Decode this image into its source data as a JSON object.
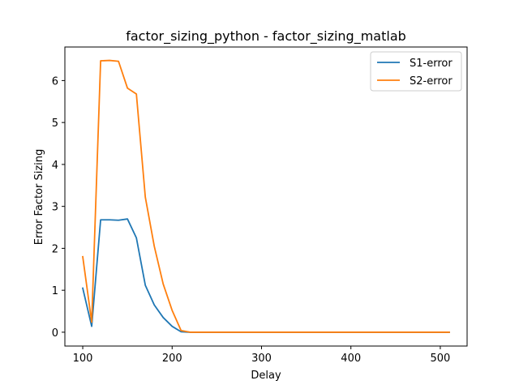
{
  "chart_data": {
    "type": "line",
    "title": "factor_sizing_python - factor_sizing_matlab",
    "xlabel": "Delay",
    "ylabel": "Error Factor Sizing",
    "xlim": [
      80,
      530
    ],
    "ylim": [
      -0.33,
      6.8
    ],
    "xticks": [
      100,
      200,
      300,
      400,
      500
    ],
    "yticks": [
      0,
      1,
      2,
      3,
      4,
      5,
      6
    ],
    "grid": false,
    "legend_position": "top-right",
    "x": [
      100,
      110,
      120,
      130,
      140,
      150,
      160,
      170,
      180,
      190,
      200,
      210,
      220,
      230,
      240,
      250,
      260,
      270,
      280,
      290,
      300,
      310,
      320,
      330,
      340,
      350,
      360,
      370,
      380,
      390,
      400,
      410,
      420,
      430,
      440,
      450,
      460,
      470,
      480,
      490,
      500,
      510
    ],
    "series": [
      {
        "name": "S1-error",
        "color": "#1f77b4",
        "values": [
          1.05,
          0.14,
          2.68,
          2.68,
          2.67,
          2.7,
          2.25,
          1.12,
          0.65,
          0.35,
          0.14,
          0.01,
          0.0,
          0.0,
          0.0,
          0.0,
          0.0,
          0.0,
          0.0,
          0.0,
          0.0,
          0.0,
          0.0,
          0.0,
          0.0,
          0.0,
          0.0,
          0.0,
          0.0,
          0.0,
          0.0,
          0.0,
          0.0,
          0.0,
          0.0,
          0.0,
          0.0,
          0.0,
          0.0,
          0.0,
          0.0,
          0.0
        ]
      },
      {
        "name": "S2-error",
        "color": "#ff7f0e",
        "values": [
          1.8,
          0.24,
          6.47,
          6.48,
          6.46,
          5.82,
          5.68,
          3.22,
          2.05,
          1.15,
          0.52,
          0.04,
          0.0,
          0.0,
          0.0,
          0.0,
          0.0,
          0.0,
          0.0,
          0.0,
          0.0,
          0.0,
          0.0,
          0.0,
          0.0,
          0.0,
          0.0,
          0.0,
          0.0,
          0.0,
          0.0,
          0.0,
          0.0,
          0.0,
          0.0,
          0.0,
          0.0,
          0.0,
          0.0,
          0.0,
          0.0,
          0.0
        ]
      }
    ]
  }
}
